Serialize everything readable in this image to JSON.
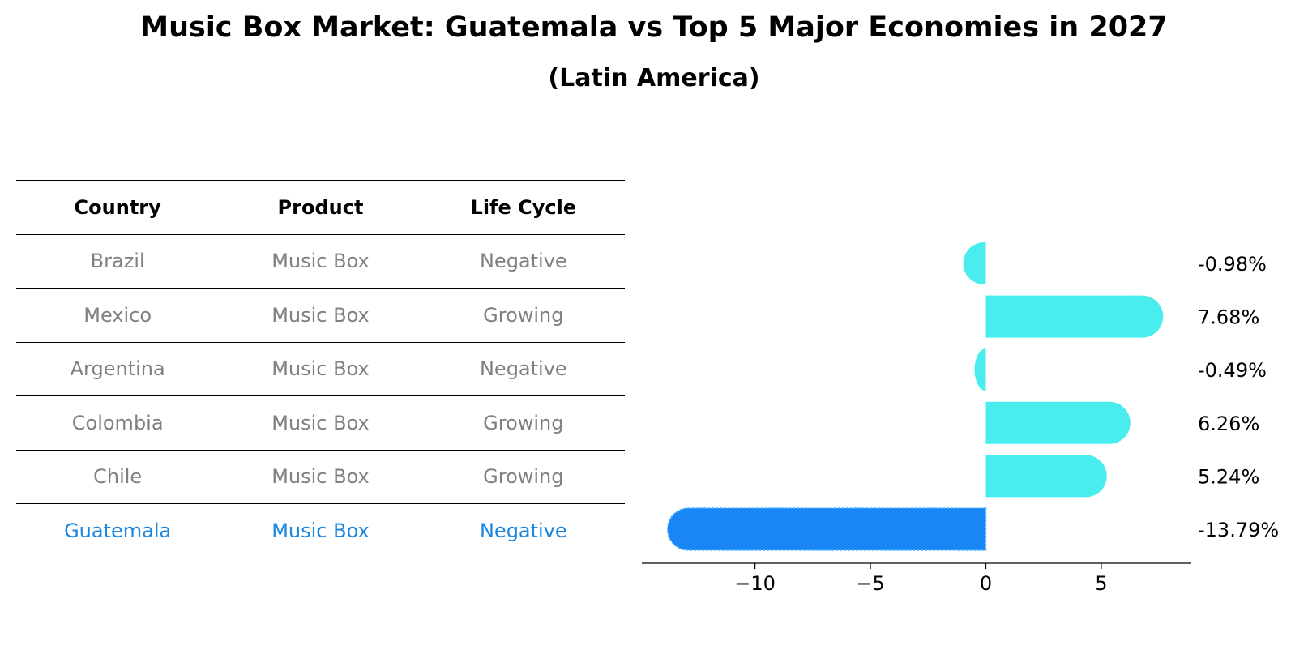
{
  "chart_data": [
    {
      "type": "table",
      "title": "Music Box Market: Guatemala vs Top 5 Major Economies in 2027",
      "subtitle": "(Latin America)",
      "columns": [
        "Country",
        "Product",
        "Life Cycle"
      ],
      "rows": [
        [
          "Brazil",
          "Music Box",
          "Negative"
        ],
        [
          "Mexico",
          "Music Box",
          "Growing"
        ],
        [
          "Argentina",
          "Music Box",
          "Negative"
        ],
        [
          "Colombia",
          "Music Box",
          "Growing"
        ],
        [
          "Chile",
          "Music Box",
          "Growing"
        ],
        [
          "Guatemala",
          "Music Box",
          "Negative"
        ]
      ],
      "highlight_row": "Guatemala"
    },
    {
      "type": "bar",
      "orientation": "horizontal",
      "categories": [
        "Brazil",
        "Mexico",
        "Argentina",
        "Colombia",
        "Chile",
        "Guatemala"
      ],
      "values": [
        -0.98,
        7.68,
        -0.49,
        6.26,
        5.24,
        -13.79
      ],
      "value_labels": [
        "-0.98%",
        "7.68%",
        "-0.49%",
        "6.26%",
        "5.24%",
        "-13.79%"
      ],
      "xlim": [
        -14.9,
        8.9
      ],
      "xticks": [
        -10,
        -5,
        0,
        5
      ],
      "xtick_labels": [
        "−10",
        "−5",
        "0",
        "5"
      ],
      "xlabel": "",
      "ylabel": "",
      "grid": false,
      "colors": {
        "default": "#4aeded",
        "highlight": "#1a86f5"
      },
      "highlight": "Guatemala"
    }
  ]
}
